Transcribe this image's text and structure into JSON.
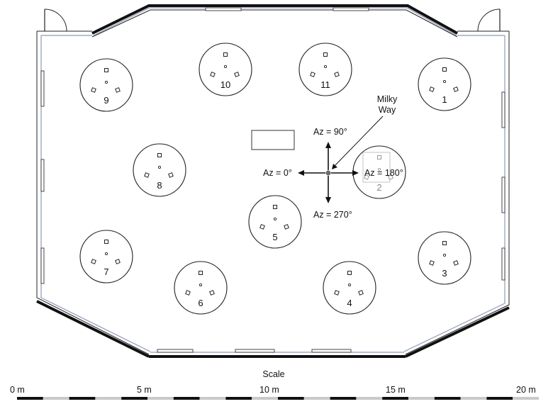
{
  "diagram": {
    "antennas": [
      {
        "label": "1",
        "dimmed": false
      },
      {
        "label": "2",
        "dimmed": true
      },
      {
        "label": "3",
        "dimmed": false
      },
      {
        "label": "4",
        "dimmed": false
      },
      {
        "label": "5",
        "dimmed": false
      },
      {
        "label": "6",
        "dimmed": false
      },
      {
        "label": "7",
        "dimmed": false
      },
      {
        "label": "8",
        "dimmed": false
      },
      {
        "label": "9",
        "dimmed": false
      },
      {
        "label": "10",
        "dimmed": false
      },
      {
        "label": "11",
        "dimmed": false
      }
    ],
    "azimuth": {
      "up": "Az = 90°",
      "left": "Az = 0°",
      "right": "Az = 180°",
      "down": "Az = 270°"
    },
    "milky_way": {
      "line1": "Milky",
      "line2": "Way"
    },
    "scale": {
      "title": "Scale",
      "ticks": [
        "0 m",
        "5 m",
        "10 m",
        "15 m",
        "20 m"
      ]
    },
    "colors": {
      "walls": "#111111",
      "inner_wall": "#8d9ab8",
      "center_dot": "#6b6b6b",
      "dimmed": "#8a8a8a"
    }
  }
}
